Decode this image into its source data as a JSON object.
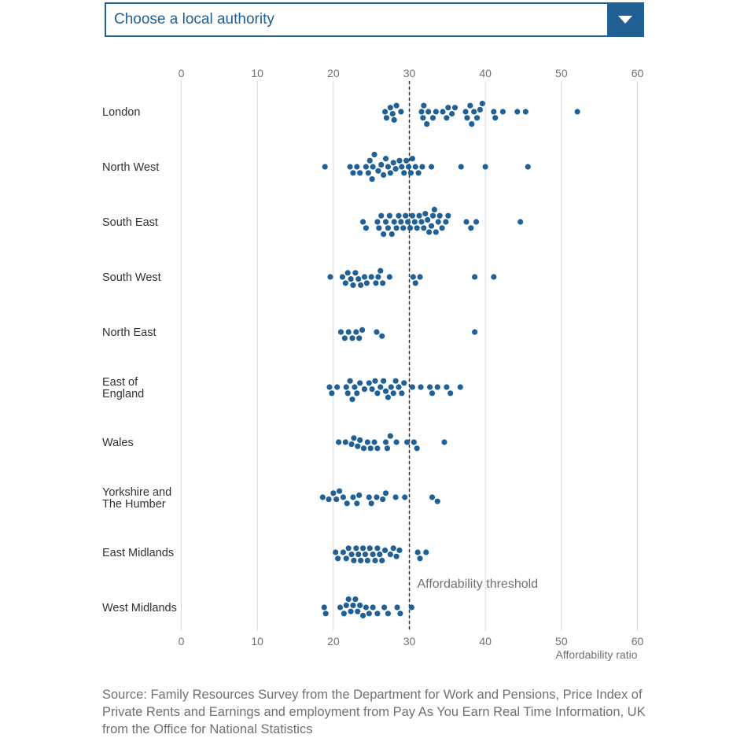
{
  "dropdown": {
    "placeholder": "Choose a local authority",
    "icon": "chevron-down-icon"
  },
  "colors": {
    "dot": "#206095",
    "accent": "#206095",
    "grid": "#d9d9d9",
    "threshold": "#323132"
  },
  "chart_data": {
    "type": "scatter",
    "subtype": "beeswarm",
    "x_axis": {
      "ticks": [
        "0",
        "10",
        "20",
        "30",
        "40",
        "50",
        "60"
      ],
      "range": [
        0,
        60
      ],
      "label": "Affordability ratio",
      "position": "top and bottom"
    },
    "threshold": {
      "value": 30,
      "label": "Affordability threshold"
    },
    "grid": true,
    "series": [
      {
        "name": "London",
        "values": [
          26.8,
          27.0,
          27.5,
          27.8,
          28.0,
          28.3,
          28.9,
          31.6,
          31.8,
          31.9,
          32.3,
          32.5,
          33.1,
          33.5,
          34.4,
          34.9,
          35.1,
          35.6,
          36.0,
          37.4,
          37.6,
          38.0,
          38.2,
          38.5,
          38.9,
          39.3,
          39.6,
          41.1,
          41.3,
          42.3,
          44.2,
          45.3,
          52.1
        ]
      },
      {
        "name": "North West",
        "values": [
          18.9,
          22.2,
          22.6,
          23.1,
          23.5,
          24.3,
          24.6,
          24.8,
          25.1,
          25.2,
          25.4,
          25.9,
          26.3,
          26.6,
          26.9,
          27.2,
          27.5,
          27.9,
          28.2,
          28.7,
          29.0,
          29.3,
          29.6,
          29.9,
          30.2,
          30.4,
          30.8,
          31.2,
          31.7,
          32.9,
          36.8,
          40.0,
          45.6
        ]
      },
      {
        "name": "South East",
        "values": [
          23.9,
          24.3,
          25.8,
          26.0,
          26.3,
          26.6,
          26.9,
          27.2,
          27.4,
          27.7,
          28.0,
          28.3,
          28.6,
          28.9,
          29.2,
          29.5,
          29.8,
          30.1,
          30.4,
          30.7,
          31.0,
          31.3,
          31.6,
          31.9,
          32.1,
          32.4,
          32.6,
          32.9,
          33.1,
          33.3,
          33.5,
          33.8,
          34.0,
          34.3,
          34.8,
          35.1,
          37.5,
          38.1,
          38.8,
          44.6
        ]
      },
      {
        "name": "South West",
        "values": [
          19.6,
          21.2,
          21.6,
          21.9,
          22.3,
          22.6,
          22.9,
          23.3,
          23.6,
          24.1,
          24.4,
          25.0,
          25.6,
          25.9,
          26.2,
          26.5,
          27.4,
          30.5,
          30.8,
          31.4,
          38.6,
          41.1
        ]
      },
      {
        "name": "North East",
        "values": [
          21.0,
          21.5,
          22.0,
          22.5,
          23.0,
          23.4,
          23.8,
          25.7,
          26.4,
          38.6
        ]
      },
      {
        "name": "East of England",
        "values": [
          19.5,
          19.8,
          20.5,
          21.7,
          21.9,
          22.2,
          22.5,
          22.8,
          23.1,
          23.5,
          24.1,
          24.7,
          25.1,
          25.5,
          25.8,
          26.2,
          26.6,
          26.9,
          27.2,
          27.6,
          27.9,
          28.2,
          28.6,
          29.0,
          29.3,
          30.4,
          31.5,
          32.7,
          33.0,
          33.7,
          34.9,
          35.4,
          36.7
        ]
      },
      {
        "name": "Wales",
        "values": [
          20.7,
          21.6,
          22.4,
          22.7,
          23.2,
          23.5,
          24.0,
          24.5,
          24.9,
          25.4,
          25.8,
          26.9,
          27.1,
          27.5,
          28.3,
          29.7,
          30.6,
          31.0,
          34.6
        ]
      },
      {
        "name": "Yorkshire and The Humber",
        "values": [
          18.6,
          19.4,
          20.0,
          20.4,
          20.8,
          21.3,
          21.8,
          22.6,
          23.1,
          23.4,
          24.7,
          25.0,
          25.7,
          26.5,
          26.9,
          28.2,
          29.4,
          33.0,
          33.7
        ]
      },
      {
        "name": "East Midlands",
        "values": [
          20.3,
          20.6,
          21.3,
          21.7,
          22.0,
          22.4,
          22.7,
          23.0,
          23.3,
          23.6,
          23.9,
          24.2,
          24.5,
          24.8,
          25.2,
          25.5,
          25.8,
          26.1,
          26.4,
          26.8,
          27.5,
          27.9,
          28.3,
          28.7,
          31.1,
          31.4,
          32.2
        ]
      },
      {
        "name": "West Midlands",
        "values": [
          18.8,
          19.0,
          20.9,
          21.4,
          21.7,
          22.0,
          22.3,
          22.6,
          22.9,
          23.2,
          23.5,
          23.9,
          24.3,
          24.7,
          25.2,
          25.8,
          26.7,
          27.2,
          28.4,
          28.8,
          30.3
        ]
      }
    ]
  },
  "source": "Source: Family Resources Survey from the Department for Work and Pensions, Price Index of Private Rents and Earnings and employment from Pay As You Earn Real Time Information, UK from the Office for National Statistics"
}
